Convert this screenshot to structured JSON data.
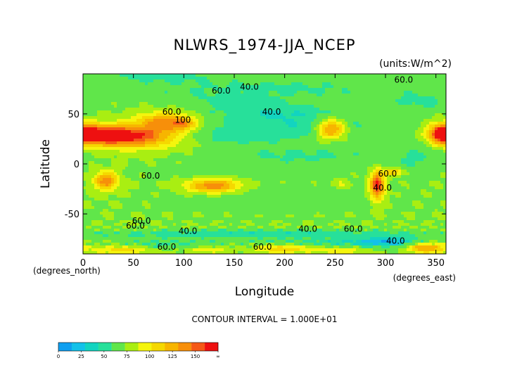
{
  "chart_data": {
    "type": "heatmap",
    "title": "NLWRS_1974-JJA_NCEP",
    "units": "(units:W/m^2)",
    "xlabel": "Longitude",
    "ylabel": "Latitude",
    "x_unit_note": "(degrees_east)",
    "y_unit_note": "(degrees_north)",
    "xlim": [
      0,
      360
    ],
    "ylim": [
      -90,
      90
    ],
    "x_ticks": [
      "0",
      "50",
      "100",
      "150",
      "200",
      "250",
      "300",
      "350"
    ],
    "x_tick_values": [
      0,
      50,
      100,
      150,
      200,
      250,
      300,
      350
    ],
    "y_ticks": [
      "50",
      "0",
      "-50"
    ],
    "y_tick_values": [
      50,
      0,
      -50
    ],
    "contour_interval": "CONTOUR INTERVAL = 1.000E+01",
    "contour_labels": [
      {
        "text": "60.0",
        "lon": 318,
        "lat": 84
      },
      {
        "text": "40.0",
        "lon": 165,
        "lat": 77
      },
      {
        "text": "60.0",
        "lon": 137,
        "lat": 73
      },
      {
        "text": "40.0",
        "lon": 187,
        "lat": 52
      },
      {
        "text": "60.0",
        "lon": 88,
        "lat": 52
      },
      {
        "text": "100",
        "lon": 99,
        "lat": 44
      },
      {
        "text": "60.0",
        "lon": 67,
        "lat": -12
      },
      {
        "text": "60.0",
        "lon": 302,
        "lat": -10
      },
      {
        "text": "40.0",
        "lon": 297,
        "lat": -24
      },
      {
        "text": "60.0",
        "lon": 58,
        "lat": -57
      },
      {
        "text": "60.0",
        "lon": 52,
        "lat": -62
      },
      {
        "text": "40.0",
        "lon": 104,
        "lat": -67
      },
      {
        "text": "40.0",
        "lon": 223,
        "lat": -65
      },
      {
        "text": "60.0",
        "lon": 268,
        "lat": -65
      },
      {
        "text": "40.0",
        "lon": 310,
        "lat": -77
      },
      {
        "text": "60.0",
        "lon": 83,
        "lat": -83
      },
      {
        "text": "60.0",
        "lon": 178,
        "lat": -83
      }
    ],
    "colorbar": {
      "ticks": [
        "0",
        "25",
        "50",
        "75",
        "100",
        "125",
        "150",
        "∞"
      ],
      "bins": [
        0,
        12.5,
        25,
        37.5,
        50,
        62.5,
        75,
        87.5,
        100,
        112.5,
        125,
        137.5,
        150
      ],
      "colors": [
        "#0f9ff0",
        "#13c1e9",
        "#12d4c0",
        "#27e09a",
        "#60e64a",
        "#a9ee12",
        "#f5f50d",
        "#f5d800",
        "#f7b500",
        "#f78f0a",
        "#f55816",
        "#ee1010"
      ]
    },
    "fields": [
      {
        "kind": "base",
        "value": 62
      },
      {
        "kind": "blob",
        "lon": 180,
        "lat": 75,
        "rx": 160,
        "ry": 12,
        "amp": -14
      },
      {
        "kind": "blob",
        "lon": 185,
        "lat": 52,
        "rx": 55,
        "ry": 8,
        "amp": -18
      },
      {
        "kind": "blob",
        "lon": 75,
        "lat": 88,
        "rx": 60,
        "ry": 6,
        "amp": -14
      },
      {
        "kind": "blob",
        "lon": 215,
        "lat": 38,
        "rx": 85,
        "ry": 14,
        "amp": -22
      },
      {
        "kind": "blob",
        "lon": 140,
        "lat": 28,
        "rx": 55,
        "ry": 9,
        "amp": -12
      },
      {
        "kind": "blob",
        "lon": 215,
        "lat": 8,
        "rx": 90,
        "ry": 10,
        "amp": -14
      },
      {
        "kind": "blob",
        "lon": 160,
        "lat": -8,
        "rx": 90,
        "ry": 6,
        "amp": -8
      },
      {
        "kind": "blob",
        "lon": 190,
        "lat": -35,
        "rx": 90,
        "ry": 12,
        "amp": -10
      },
      {
        "kind": "blob",
        "lon": 330,
        "lat": 5,
        "rx": 25,
        "ry": 15,
        "amp": -12
      },
      {
        "kind": "blob",
        "lon": 150,
        "lat": 62,
        "rx": 45,
        "ry": 7,
        "amp": -12
      },
      {
        "kind": "blob",
        "lon": 335,
        "lat": 62,
        "rx": 30,
        "ry": 10,
        "amp": -14
      },
      {
        "kind": "blob",
        "lon": 60,
        "lat": 28,
        "rx": 38,
        "ry": 12,
        "amp": 62
      },
      {
        "kind": "blob",
        "lon": 28,
        "lat": 28,
        "rx": 26,
        "ry": 10,
        "amp": 60
      },
      {
        "kind": "blob",
        "lon": 5,
        "lat": 30,
        "rx": 16,
        "ry": 9,
        "amp": 62
      },
      {
        "kind": "blob",
        "lon": 80,
        "lat": 43,
        "rx": 25,
        "ry": 9,
        "amp": 45
      },
      {
        "kind": "blob",
        "lon": 100,
        "lat": 40,
        "rx": 15,
        "ry": 7,
        "amp": 35
      },
      {
        "kind": "blob",
        "lon": 355,
        "lat": 30,
        "rx": 14,
        "ry": 10,
        "amp": 60
      },
      {
        "kind": "blob",
        "lon": 246,
        "lat": 35,
        "rx": 15,
        "ry": 10,
        "amp": 68
      },
      {
        "kind": "blob",
        "lon": 129,
        "lat": -22,
        "rx": 26,
        "ry": 7,
        "amp": 62
      },
      {
        "kind": "blob",
        "lon": 23,
        "lat": -17,
        "rx": 12,
        "ry": 9,
        "amp": 60
      },
      {
        "kind": "blob",
        "lon": 292,
        "lat": -22,
        "rx": 7,
        "ry": 14,
        "amp": 82
      },
      {
        "kind": "blob",
        "lon": 308,
        "lat": -8,
        "rx": 10,
        "ry": 4,
        "amp": 38
      },
      {
        "kind": "blob",
        "lon": 255,
        "lat": -20,
        "rx": 8,
        "ry": 4,
        "amp": 15
      },
      {
        "kind": "blob",
        "lon": 180,
        "lat": -70,
        "rx": 180,
        "ry": 4,
        "amp": -22
      },
      {
        "kind": "blob",
        "lon": 250,
        "lat": -78,
        "rx": 90,
        "ry": 4,
        "amp": -18
      },
      {
        "kind": "blob",
        "lon": 300,
        "lat": -78,
        "rx": 30,
        "ry": 5,
        "amp": -34
      },
      {
        "kind": "blob",
        "lon": 80,
        "lat": -80,
        "rx": 40,
        "ry": 5,
        "amp": -16
      },
      {
        "kind": "blob",
        "lon": 340,
        "lat": -84,
        "rx": 18,
        "ry": 5,
        "amp": 55
      },
      {
        "kind": "blob",
        "lon": 200,
        "lat": -85,
        "rx": 30,
        "ry": 4,
        "amp": 35
      },
      {
        "kind": "blob",
        "lon": 40,
        "lat": -86,
        "rx": 30,
        "ry": 4,
        "amp": 30
      },
      {
        "kind": "blob",
        "lon": 260,
        "lat": -87,
        "rx": 25,
        "ry": 3,
        "amp": 22
      },
      {
        "kind": "blob",
        "lon": 125,
        "lat": -86,
        "rx": 20,
        "ry": 3,
        "amp": 25
      }
    ]
  }
}
